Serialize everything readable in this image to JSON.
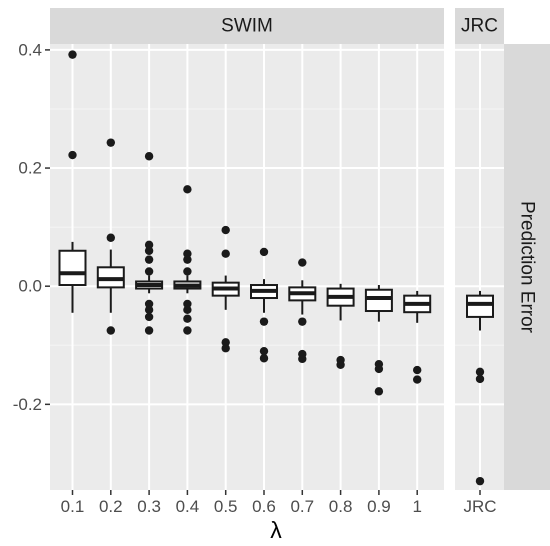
{
  "chart_data": {
    "type": "boxplot",
    "xlabel": "λ",
    "ylabel": "",
    "facet_strip_right": "Prediction Error",
    "ylim": [
      -0.345,
      0.41
    ],
    "yticks": [
      -0.2,
      0.0,
      0.2,
      0.4
    ],
    "ytick_labels": [
      "-0.2",
      "0.0",
      "0.2",
      "0.4"
    ],
    "grid": true,
    "panels": [
      {
        "strip": "SWIM",
        "categories": [
          "0.1",
          "0.2",
          "0.3",
          "0.4",
          "0.5",
          "0.6",
          "0.7",
          "0.8",
          "0.9",
          "1"
        ],
        "boxes": [
          {
            "q1": 0.002,
            "median": 0.022,
            "q3": 0.06,
            "whisker_low": -0.045,
            "whisker_high": 0.075,
            "outliers": [
              0.392,
              0.222
            ]
          },
          {
            "q1": -0.002,
            "median": 0.012,
            "q3": 0.032,
            "whisker_low": -0.045,
            "whisker_high": 0.062,
            "outliers": [
              0.243,
              0.082,
              -0.075
            ]
          },
          {
            "q1": -0.004,
            "median": 0.002,
            "q3": 0.008,
            "whisker_low": -0.012,
            "whisker_high": 0.018,
            "outliers": [
              0.22,
              0.07,
              0.06,
              0.045,
              0.025,
              -0.03,
              -0.04,
              -0.052,
              -0.075
            ]
          },
          {
            "q1": -0.004,
            "median": 0.001,
            "q3": 0.008,
            "whisker_low": -0.012,
            "whisker_high": 0.018,
            "outliers": [
              0.164,
              0.055,
              0.045,
              0.025,
              -0.03,
              -0.04,
              -0.055,
              -0.075
            ]
          },
          {
            "q1": -0.016,
            "median": -0.004,
            "q3": 0.006,
            "whisker_low": -0.04,
            "whisker_high": 0.018,
            "outliers": [
              0.095,
              0.055,
              -0.095,
              -0.105
            ]
          },
          {
            "q1": -0.02,
            "median": -0.008,
            "q3": 0.002,
            "whisker_low": -0.045,
            "whisker_high": 0.012,
            "outliers": [
              0.058,
              -0.06,
              -0.11,
              -0.122
            ]
          },
          {
            "q1": -0.024,
            "median": -0.012,
            "q3": -0.002,
            "whisker_low": -0.048,
            "whisker_high": 0.01,
            "outliers": [
              0.04,
              -0.06,
              -0.115,
              -0.123
            ]
          },
          {
            "q1": -0.033,
            "median": -0.018,
            "q3": -0.004,
            "whisker_low": -0.058,
            "whisker_high": 0.004,
            "outliers": [
              -0.125,
              -0.133
            ]
          },
          {
            "q1": -0.042,
            "median": -0.02,
            "q3": -0.006,
            "whisker_low": -0.06,
            "whisker_high": 0.002,
            "outliers": [
              -0.132,
              -0.14,
              -0.178
            ]
          },
          {
            "q1": -0.044,
            "median": -0.03,
            "q3": -0.016,
            "whisker_low": -0.062,
            "whisker_high": -0.008,
            "outliers": [
              -0.142,
              -0.158
            ]
          }
        ]
      },
      {
        "strip": "JRC",
        "categories": [
          "JRC"
        ],
        "boxes": [
          {
            "q1": -0.052,
            "median": -0.03,
            "q3": -0.016,
            "whisker_low": -0.075,
            "whisker_high": -0.008,
            "outliers": [
              -0.145,
              -0.157,
              -0.33
            ]
          }
        ]
      }
    ]
  }
}
